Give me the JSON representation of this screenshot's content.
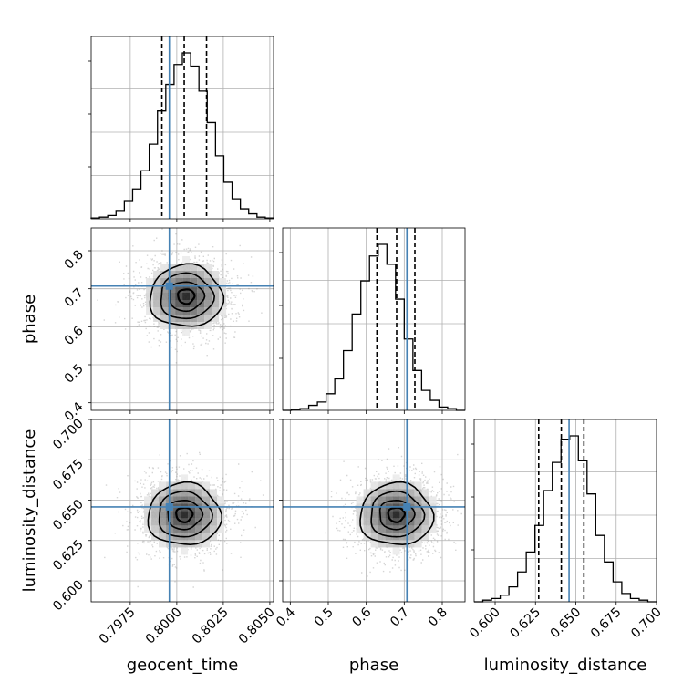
{
  "chart_data": {
    "type": "corner",
    "parameters": [
      "geocent_time",
      "phase",
      "luminosity_distance"
    ],
    "truths": {
      "geocent_time": 0.7996,
      "phase": 0.707,
      "luminosity_distance": 0.6458
    },
    "quantiles": {
      "geocent_time": [
        0.7992,
        0.8004,
        0.8016
      ],
      "phase": [
        0.628,
        0.68,
        0.728
      ],
      "luminosity_distance": [
        0.627,
        0.641,
        0.655
      ]
    },
    "axis_ranges": {
      "geocent_time": [
        0.7954,
        0.8052
      ],
      "phase": [
        0.38,
        0.86
      ],
      "luminosity_distance": [
        0.587,
        0.7
      ]
    },
    "ticks": {
      "geocent_time": {
        "values": [
          0.7975,
          0.8,
          0.8025,
          0.805
        ],
        "labels": [
          "0.7975",
          "0.8000",
          "0.8025",
          "0.8050"
        ]
      },
      "phase": {
        "values": [
          0.4,
          0.5,
          0.6,
          0.7,
          0.8
        ],
        "labels": [
          "0.4",
          "0.5",
          "0.6",
          "0.7",
          "0.8"
        ]
      },
      "luminosity_distance": {
        "values": [
          0.6,
          0.625,
          0.65,
          0.675,
          0.7
        ],
        "labels": [
          "0.600",
          "0.625",
          "0.650",
          "0.675",
          "0.700"
        ]
      }
    },
    "histograms": {
      "geocent_time": [
        0.5,
        1,
        2,
        5,
        11,
        18,
        29,
        45,
        65,
        81,
        93,
        100,
        92,
        77,
        58,
        38,
        22,
        12,
        6,
        3,
        1,
        0.5
      ],
      "phase": [
        0,
        0.5,
        1,
        3,
        5,
        10,
        19,
        36,
        58,
        78,
        93,
        100,
        88,
        67,
        43,
        24,
        12,
        6,
        2,
        1,
        0
      ],
      "luminosity_distance": [
        0,
        1,
        2,
        4,
        9,
        18,
        30,
        46,
        67,
        84,
        98,
        100,
        85,
        65,
        40,
        24,
        12,
        5,
        2,
        1,
        0
      ]
    },
    "means_2d": {
      "phase_vs_geocent_time": [
        0.8005,
        0.68
      ],
      "luminosity_distance_vs_geocent_time": [
        0.8004,
        0.641
      ],
      "luminosity_distance_vs_phase": [
        0.679,
        0.641
      ]
    },
    "grid": true,
    "truth_color": "#4682b4"
  }
}
